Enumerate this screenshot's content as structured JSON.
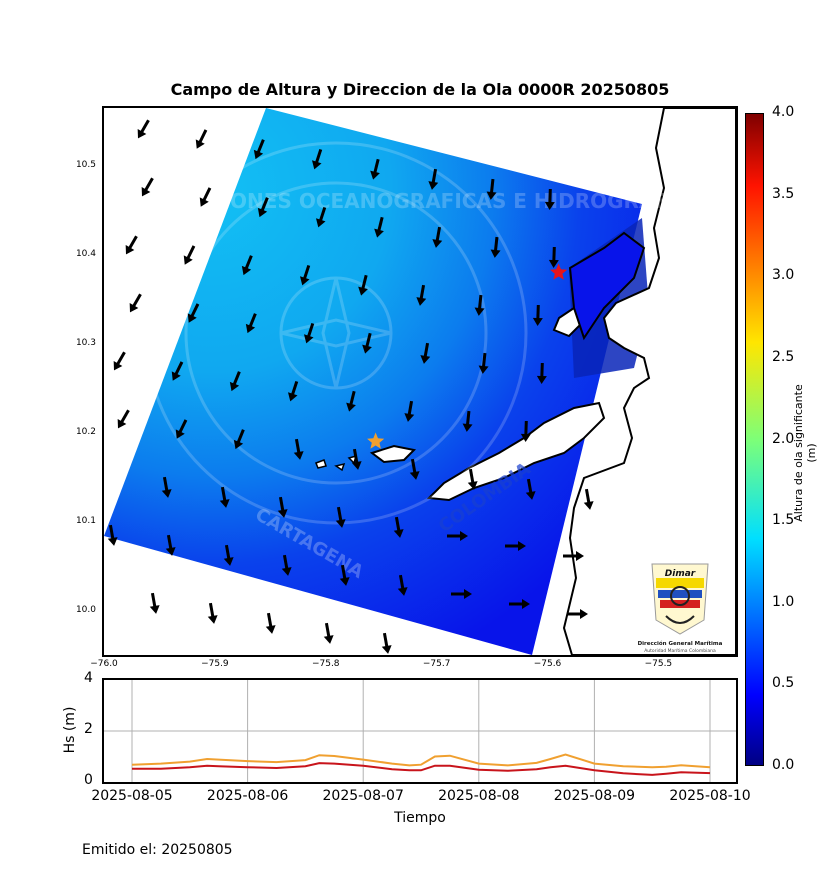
{
  "chart_data": [
    {
      "type": "heatmap",
      "title": "Campo de Altura y Direccion de la Ola 0000R 20250805",
      "xlim": [
        -76.0,
        -75.43
      ],
      "ylim": [
        9.95,
        10.565
      ],
      "x_ticks": [
        "−76.0",
        "−75.9",
        "−75.8",
        "−75.7",
        "−75.6",
        "−75.5"
      ],
      "y_ticks": [
        "10.0",
        "10.1",
        "10.2",
        "10.3",
        "10.4",
        "10.5"
      ],
      "colorbar": {
        "label": "Altura de ola significante (m)",
        "range": [
          0.0,
          4.0
        ],
        "ticks": [
          "0.0",
          "0.5",
          "1.0",
          "1.5",
          "2.0",
          "2.5",
          "3.0",
          "3.5",
          "4.0"
        ],
        "colormap": "jet"
      },
      "field_summary": {
        "offshore_hs": 1.0,
        "coastal_hs": 0.3
      },
      "markers": [
        {
          "name": "red-star",
          "lon": -75.59,
          "lat": 10.38,
          "color": "#e8141b"
        },
        {
          "name": "orange-star",
          "lon": -75.755,
          "lat": 10.19,
          "color": "#f0a030"
        }
      ],
      "annotations": [
        "COLOMBIA"
      ],
      "watermark_text": [
        "CENTRO DE INVESTIGACIONES OCEANOGRAFICAS E HIDROGRAFICAS",
        "CARTAGENA"
      ]
    },
    {
      "type": "line",
      "xlabel": "Tiempo",
      "ylabel": "Hs (m)",
      "ylim": [
        0,
        4
      ],
      "y_ticks": [
        "0",
        "2",
        "4"
      ],
      "x_ticks": [
        "2025-08-05",
        "2025-08-06",
        "2025-08-07",
        "2025-08-08",
        "2025-08-09",
        "2025-08-10"
      ],
      "grid": true,
      "series": [
        {
          "color": "#f0a030",
          "x": [
            0,
            0.25,
            0.5,
            0.65,
            0.75,
            1.0,
            1.25,
            1.5,
            1.62,
            1.75,
            2.0,
            2.25,
            2.4,
            2.5,
            2.62,
            2.75,
            3.0,
            3.25,
            3.5,
            3.62,
            3.75,
            4.0,
            4.25,
            4.5,
            4.62,
            4.75,
            5.0
          ],
          "values": [
            0.68,
            0.72,
            0.8,
            0.9,
            0.88,
            0.82,
            0.78,
            0.86,
            1.05,
            1.02,
            0.88,
            0.72,
            0.65,
            0.68,
            1.0,
            1.03,
            0.72,
            0.65,
            0.75,
            0.9,
            1.08,
            0.72,
            0.62,
            0.58,
            0.6,
            0.66,
            0.58
          ]
        },
        {
          "color": "#c8141b",
          "x": [
            0,
            0.25,
            0.5,
            0.65,
            0.75,
            1.0,
            1.25,
            1.5,
            1.62,
            1.75,
            2.0,
            2.25,
            2.4,
            2.5,
            2.62,
            2.75,
            3.0,
            3.25,
            3.5,
            3.62,
            3.75,
            4.0,
            4.25,
            4.5,
            4.62,
            4.75,
            5.0
          ],
          "values": [
            0.52,
            0.52,
            0.58,
            0.64,
            0.62,
            0.58,
            0.55,
            0.62,
            0.74,
            0.72,
            0.64,
            0.5,
            0.46,
            0.46,
            0.64,
            0.64,
            0.48,
            0.44,
            0.5,
            0.58,
            0.64,
            0.46,
            0.34,
            0.28,
            0.32,
            0.38,
            0.35
          ]
        }
      ]
    }
  ],
  "logo": {
    "brand": "Dimar",
    "line1": "Dirección General Marítima",
    "line2": "Autoridad Marítima Colombiana"
  },
  "footer": "Emitido el: 20250805",
  "colors": {
    "offshore": "#10b8f2",
    "mid": "#0a70ee",
    "coastal": "#0a1aee",
    "land": "#ffffff"
  }
}
